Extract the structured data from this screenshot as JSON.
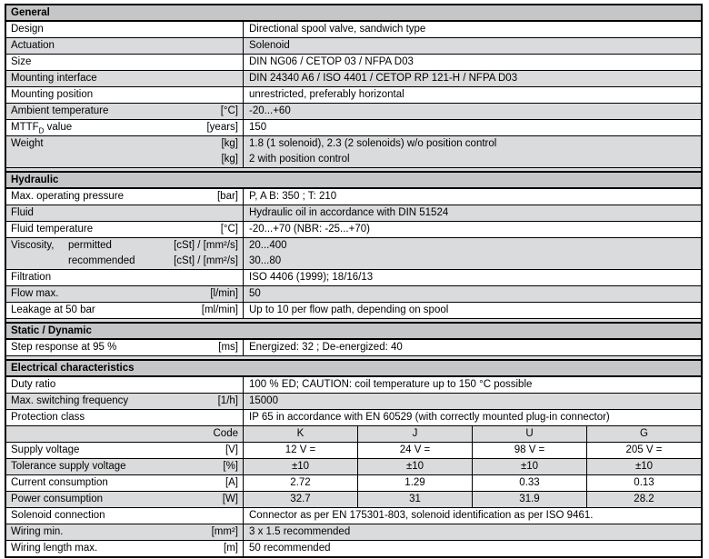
{
  "colors": {
    "header_bg": "#c5c6c8",
    "alt_row_bg": "#dadbdd",
    "border": "#000000",
    "row_bg": "#ffffff"
  },
  "general": {
    "title": "General",
    "rows": [
      {
        "label": "Design",
        "unit": "",
        "value": "Directional spool valve, sandwich type"
      },
      {
        "label": "Actuation",
        "unit": "",
        "value": "Solenoid"
      },
      {
        "label": "Size",
        "unit": "",
        "value": "DIN NG06 / CETOP 03 / NFPA D03"
      },
      {
        "label": "Mounting interface",
        "unit": "",
        "value": "DIN 24340 A6 / ISO 4401 / CETOP RP 121-H / NFPA D03"
      },
      {
        "label": "Mounting position",
        "unit": "",
        "value": "unrestricted, preferably horizontal"
      },
      {
        "label": "Ambient temperature",
        "unit": "[°C]",
        "value": "-20...+60"
      }
    ],
    "mttf": {
      "pre": "MTTF",
      "sub": "D",
      "post": " value",
      "unit": "[years]",
      "value": "150"
    },
    "weight": {
      "label": "Weight",
      "unit1": "[kg]",
      "unit2": "[kg]",
      "value1": "1.8 (1 solenoid), 2.3 (2 solenoids) w/o position control",
      "value2": "2 with position control"
    }
  },
  "hydraulic": {
    "title": "Hydraulic",
    "rows": [
      {
        "label": "Max. operating pressure",
        "unit": "[bar]",
        "value": "P, A B: 350 ; T: 210"
      },
      {
        "label": "Fluid",
        "unit": "",
        "value": "Hydraulic oil in accordance with DIN 51524"
      },
      {
        "label": "Fluid temperature",
        "unit": "[°C]",
        "value": "-20...+70 (NBR: -25...+70)"
      }
    ],
    "viscosity": {
      "label": "Viscosity,",
      "sub1": "permitted",
      "sub2": "recommended",
      "unit1": "[cSt] / [mm²/s]",
      "unit2": "[cSt] / [mm²/s]",
      "value1": "20...400",
      "value2": "30...80"
    },
    "rows2": [
      {
        "label": "Filtration",
        "unit": "",
        "value": "ISO 4406 (1999); 18/16/13"
      },
      {
        "label": "Flow max.",
        "unit": "[l/min]",
        "value": "50"
      },
      {
        "label": "Leakage at 50 bar",
        "unit": "[ml/min]",
        "value": "Up to 10 per flow path, depending on spool"
      }
    ]
  },
  "static_dynamic": {
    "title": "Static / Dynamic",
    "rows": [
      {
        "label": "Step response at 95 %",
        "unit": "[ms]",
        "value": "Energized: 32 ; De-energized: 40"
      }
    ]
  },
  "electrical": {
    "title": "Electrical characteristics",
    "rows": [
      {
        "label": "Duty ratio",
        "unit": "",
        "value": "100 % ED; CAUTION: coil temperature up to 150 °C possible"
      },
      {
        "label": "Max. switching frequency",
        "unit": "[1/h]",
        "value": "15000"
      },
      {
        "label": "Protection class",
        "unit": "",
        "value": "IP 65 in accordance with EN 60529 (with correctly mounted plug-in connector)"
      }
    ],
    "code_table": {
      "code_label": "Code",
      "codes": [
        "K",
        "J",
        "U",
        "G"
      ],
      "rows": [
        {
          "label": "Supply voltage",
          "unit": "[V]",
          "values": [
            "12 V =",
            "24 V =",
            "98 V =",
            "205 V ="
          ]
        },
        {
          "label": "Tolerance supply voltage",
          "unit": "[%]",
          "values": [
            "±10",
            "±10",
            "±10",
            "±10"
          ]
        },
        {
          "label": "Current consumption",
          "unit": "[A]",
          "values": [
            "2.72",
            "1.29",
            "0.33",
            "0.13"
          ]
        },
        {
          "label": "Power consumption",
          "unit": "[W]",
          "values": [
            "32.7",
            "31",
            "31.9",
            "28.2"
          ]
        }
      ]
    },
    "rows2": [
      {
        "label": "Solenoid connection",
        "unit": "",
        "value": "Connector as per EN 175301-803, solenoid identification as per ISO 9461."
      },
      {
        "label": "Wiring min.",
        "unit": "[mm²]",
        "value": "3 x 1.5 recommended"
      },
      {
        "label": "Wiring length max.",
        "unit": "[m]",
        "value": "50 recommended"
      }
    ]
  }
}
